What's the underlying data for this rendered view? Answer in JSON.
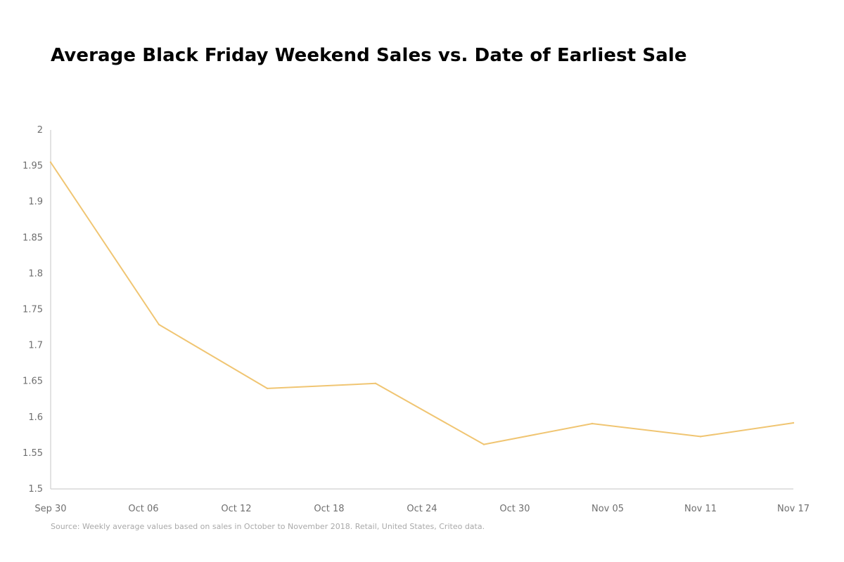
{
  "chart_data": {
    "type": "line",
    "title": "Average Black Friday Weekend Sales vs. Date of Earliest Sale",
    "xlabel": "",
    "ylabel": "",
    "x_ticks": [
      "Sep 30",
      "Oct 06",
      "Oct 12",
      "Oct 18",
      "Oct 24",
      "Oct 30",
      "Nov 05",
      "Nov 11",
      "Nov 17"
    ],
    "y_ticks": [
      "2",
      "1.95",
      "1.9",
      "1.85",
      "1.8",
      "1.75",
      "1.7",
      "1.65",
      "1.6",
      "1.55",
      "1.5"
    ],
    "ylim": [
      1.5,
      2.0
    ],
    "xlim": [
      "Sep 30",
      "Nov 17"
    ],
    "grid": false,
    "series": [
      {
        "color": "#f0c572",
        "points": [
          {
            "x": "Sep 30",
            "y": 1.955
          },
          {
            "x": "Oct 07",
            "y": 1.729
          },
          {
            "x": "Oct 14",
            "y": 1.64
          },
          {
            "x": "Oct 21",
            "y": 1.647
          },
          {
            "x": "Oct 28",
            "y": 1.562
          },
          {
            "x": "Nov 04",
            "y": 1.591
          },
          {
            "x": "Nov 11",
            "y": 1.573
          },
          {
            "x": "Nov 17",
            "y": 1.592
          }
        ]
      }
    ],
    "source": "Source: Weekly average values based on sales in October to November 2018. Retail, United States, Criteo data."
  }
}
